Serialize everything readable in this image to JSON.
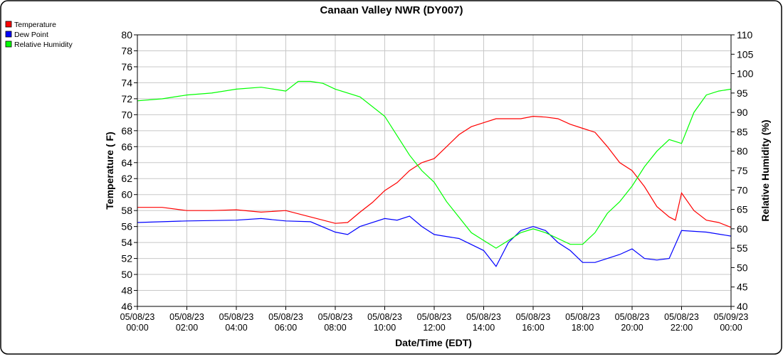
{
  "chart_data": {
    "type": "line",
    "title": "Canaan Valley NWR (DY007)",
    "xlabel": "Date/Time (EDT)",
    "ylabel": "Temperature ( F)",
    "y2label": "Relative Humidity (%)",
    "ylim": [
      46,
      80
    ],
    "y2lim": [
      40,
      110
    ],
    "yticks": [
      "46",
      "48",
      "50",
      "52",
      "54",
      "56",
      "58",
      "60",
      "62",
      "64",
      "66",
      "68",
      "70",
      "72",
      "74",
      "76",
      "78",
      "80"
    ],
    "y2ticks": [
      "40",
      "45",
      "50",
      "55",
      "60",
      "65",
      "70",
      "75",
      "80",
      "85",
      "90",
      "95",
      "100",
      "105",
      "110"
    ],
    "xticks": [
      [
        "05/08/23",
        "00:00"
      ],
      [
        "05/08/23",
        "02:00"
      ],
      [
        "05/08/23",
        "04:00"
      ],
      [
        "05/08/23",
        "06:00"
      ],
      [
        "05/08/23",
        "08:00"
      ],
      [
        "05/08/23",
        "10:00"
      ],
      [
        "05/08/23",
        "12:00"
      ],
      [
        "05/08/23",
        "14:00"
      ],
      [
        "05/08/23",
        "16:00"
      ],
      [
        "05/08/23",
        "18:00"
      ],
      [
        "05/08/23",
        "20:00"
      ],
      [
        "05/08/23",
        "22:00"
      ],
      [
        "05/09/23",
        "00:00"
      ]
    ],
    "xlim_hours": [
      0,
      24
    ],
    "grid": true,
    "legend": "top-left",
    "series": [
      {
        "name": "Temperature",
        "color": "#ff0000",
        "axis": "left",
        "x": [
          0,
          1,
          2,
          3,
          4,
          5,
          6,
          7,
          8,
          8.5,
          9,
          9.5,
          10,
          10.5,
          11,
          11.5,
          12,
          12.5,
          13,
          13.5,
          14,
          14.5,
          15,
          15.5,
          16,
          16.5,
          17,
          17.5,
          18,
          18.5,
          19,
          19.5,
          20,
          20.5,
          21,
          21.5,
          21.75,
          22,
          22.5,
          23,
          23.5,
          24
        ],
        "y": [
          58.4,
          58.4,
          58.0,
          58.0,
          58.1,
          57.8,
          58.0,
          57.2,
          56.4,
          56.5,
          57.8,
          59,
          60.5,
          61.5,
          63,
          64,
          64.5,
          66,
          67.5,
          68.5,
          69,
          69.5,
          69.5,
          69.5,
          69.8,
          69.7,
          69.5,
          68.8,
          68.3,
          67.8,
          66,
          64,
          63,
          61,
          58.5,
          57.2,
          56.8,
          60.2,
          58,
          56.8,
          56.5,
          55.9
        ]
      },
      {
        "name": "Dew Point",
        "color": "#0000ff",
        "axis": "left",
        "x": [
          0,
          2,
          4,
          5,
          6,
          7,
          8,
          8.5,
          9,
          10,
          10.5,
          11,
          11.5,
          12,
          13,
          14,
          14.5,
          15,
          15.5,
          16,
          16.5,
          17,
          17.5,
          18,
          18.5,
          19,
          19.5,
          20,
          20.5,
          21,
          21.5,
          22,
          23,
          24
        ],
        "y": [
          56.5,
          56.7,
          56.8,
          57,
          56.7,
          56.6,
          55.3,
          55,
          56,
          57,
          56.8,
          57.3,
          56,
          55,
          54.5,
          53,
          51,
          54,
          55.5,
          56,
          55.5,
          54,
          53,
          51.5,
          51.5,
          52,
          52.5,
          53.2,
          52,
          51.8,
          52,
          55.5,
          55.3,
          54.8
        ]
      },
      {
        "name": "Relative Humidity",
        "color": "#00ff00",
        "axis": "right",
        "x": [
          0,
          1,
          2,
          3,
          4,
          5,
          6,
          6.5,
          7,
          7.5,
          8,
          9,
          10,
          10.5,
          11,
          11.5,
          12,
          12.5,
          13,
          13.5,
          14,
          14.5,
          15,
          15.5,
          16,
          16.5,
          17,
          17.5,
          18,
          18.5,
          19,
          19.5,
          20,
          20.5,
          21,
          21.5,
          22,
          22.5,
          23,
          23.5,
          24
        ],
        "y": [
          93,
          93.5,
          94.5,
          95,
          96,
          96.5,
          95.5,
          98,
          98,
          97.5,
          96,
          94,
          89,
          84,
          79,
          75,
          72,
          67,
          63,
          59,
          57,
          55,
          57,
          59,
          60,
          59,
          57.5,
          56,
          56,
          59,
          64,
          67,
          71,
          76,
          80,
          83,
          82,
          90,
          94.5,
          95.5,
          96
        ]
      }
    ]
  }
}
